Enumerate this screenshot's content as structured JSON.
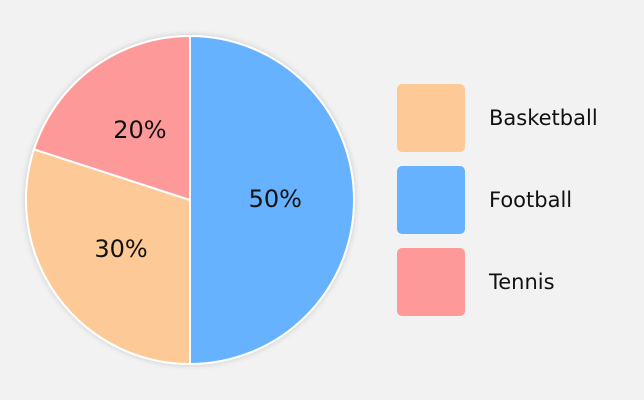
{
  "chart_data": {
    "type": "pie",
    "categories": [
      "Basketball",
      "Football",
      "Tennis"
    ],
    "values": [
      30,
      50,
      20
    ],
    "value_labels": [
      "30%",
      "50%",
      "20%"
    ],
    "colors": [
      "#fdc996",
      "#66b2fe",
      "#fe9999"
    ],
    "startangle": 162,
    "counterclock": true
  }
}
